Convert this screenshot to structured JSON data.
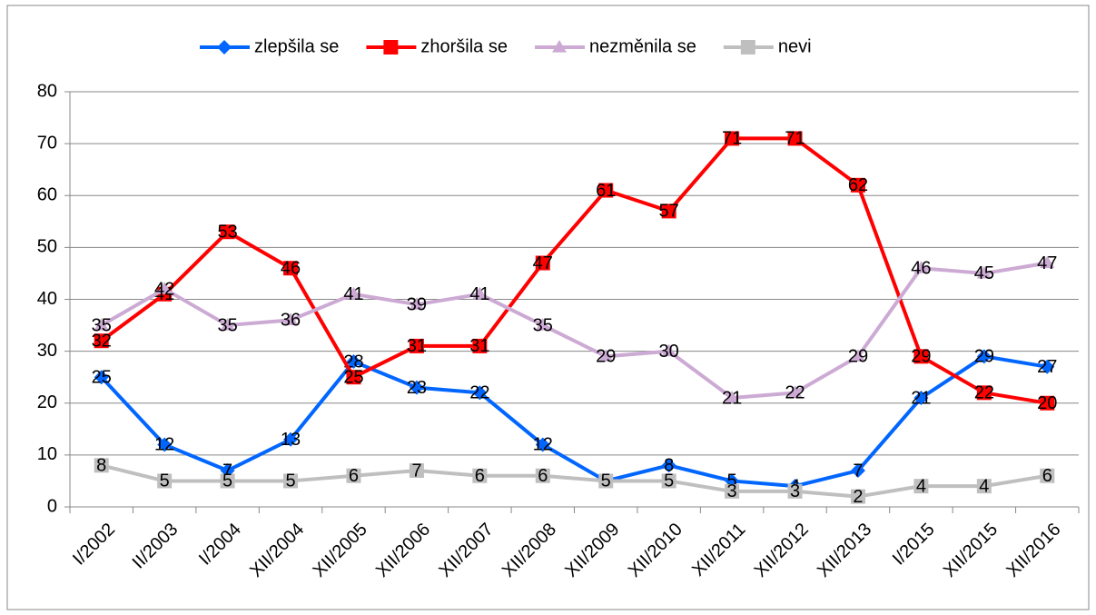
{
  "chart_data": {
    "type": "line",
    "categories": [
      "I/2002",
      "II/2003",
      "I/2004",
      "XII/2004",
      "XII/2005",
      "XII/2006",
      "XII/2007",
      "XII/2008",
      "XII/2009",
      "XII/2010",
      "XII/2011",
      "XII/2012",
      "XII/2013",
      "I/2015",
      "XII/2015",
      "XII/2016"
    ],
    "series": [
      {
        "name": "zlepšila se",
        "color": "#0066ff",
        "marker": "diamond",
        "values": [
          25,
          12,
          7,
          13,
          28,
          23,
          22,
          12,
          5,
          8,
          5,
          4,
          7,
          21,
          29,
          27
        ]
      },
      {
        "name": "zhoršila se",
        "color": "#ff0000",
        "marker": "square",
        "values": [
          32,
          41,
          53,
          46,
          25,
          31,
          31,
          47,
          61,
          57,
          71,
          71,
          62,
          29,
          22,
          20
        ]
      },
      {
        "name": "nezměnila se",
        "color": "#ccaad4",
        "marker": "triangle",
        "values": [
          35,
          42,
          35,
          36,
          41,
          39,
          41,
          35,
          29,
          30,
          21,
          22,
          29,
          46,
          45,
          47
        ]
      },
      {
        "name": "nevi",
        "color": "#bfbfbf",
        "marker": "square",
        "values": [
          8,
          5,
          5,
          5,
          6,
          7,
          6,
          6,
          5,
          5,
          3,
          3,
          2,
          4,
          4,
          6
        ]
      }
    ],
    "ylim": [
      0,
      80
    ],
    "yticks": [
      0,
      10,
      20,
      30,
      40,
      50,
      60,
      70,
      80
    ],
    "grid": true,
    "legend": "top"
  }
}
